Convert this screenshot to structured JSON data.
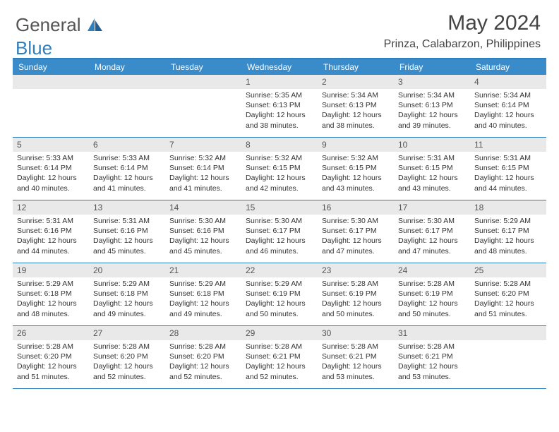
{
  "brand": {
    "part1": "General",
    "part2": "Blue"
  },
  "title": "May 2024",
  "location": "Prinza, Calabarzon, Philippines",
  "colors": {
    "header_bg": "#3a8bc9",
    "border": "#2f7fbf",
    "daynum_bg": "#e9e9e9",
    "text": "#333333"
  },
  "dow": [
    "Sunday",
    "Monday",
    "Tuesday",
    "Wednesday",
    "Thursday",
    "Friday",
    "Saturday"
  ],
  "weeks": [
    [
      null,
      null,
      null,
      {
        "n": "1",
        "sr": "5:35 AM",
        "ss": "6:13 PM",
        "dlA": "Daylight: 12 hours",
        "dlB": "and 38 minutes."
      },
      {
        "n": "2",
        "sr": "5:34 AM",
        "ss": "6:13 PM",
        "dlA": "Daylight: 12 hours",
        "dlB": "and 38 minutes."
      },
      {
        "n": "3",
        "sr": "5:34 AM",
        "ss": "6:13 PM",
        "dlA": "Daylight: 12 hours",
        "dlB": "and 39 minutes."
      },
      {
        "n": "4",
        "sr": "5:34 AM",
        "ss": "6:14 PM",
        "dlA": "Daylight: 12 hours",
        "dlB": "and 40 minutes."
      }
    ],
    [
      {
        "n": "5",
        "sr": "5:33 AM",
        "ss": "6:14 PM",
        "dlA": "Daylight: 12 hours",
        "dlB": "and 40 minutes."
      },
      {
        "n": "6",
        "sr": "5:33 AM",
        "ss": "6:14 PM",
        "dlA": "Daylight: 12 hours",
        "dlB": "and 41 minutes."
      },
      {
        "n": "7",
        "sr": "5:32 AM",
        "ss": "6:14 PM",
        "dlA": "Daylight: 12 hours",
        "dlB": "and 41 minutes."
      },
      {
        "n": "8",
        "sr": "5:32 AM",
        "ss": "6:15 PM",
        "dlA": "Daylight: 12 hours",
        "dlB": "and 42 minutes."
      },
      {
        "n": "9",
        "sr": "5:32 AM",
        "ss": "6:15 PM",
        "dlA": "Daylight: 12 hours",
        "dlB": "and 43 minutes."
      },
      {
        "n": "10",
        "sr": "5:31 AM",
        "ss": "6:15 PM",
        "dlA": "Daylight: 12 hours",
        "dlB": "and 43 minutes."
      },
      {
        "n": "11",
        "sr": "5:31 AM",
        "ss": "6:15 PM",
        "dlA": "Daylight: 12 hours",
        "dlB": "and 44 minutes."
      }
    ],
    [
      {
        "n": "12",
        "sr": "5:31 AM",
        "ss": "6:16 PM",
        "dlA": "Daylight: 12 hours",
        "dlB": "and 44 minutes."
      },
      {
        "n": "13",
        "sr": "5:31 AM",
        "ss": "6:16 PM",
        "dlA": "Daylight: 12 hours",
        "dlB": "and 45 minutes."
      },
      {
        "n": "14",
        "sr": "5:30 AM",
        "ss": "6:16 PM",
        "dlA": "Daylight: 12 hours",
        "dlB": "and 45 minutes."
      },
      {
        "n": "15",
        "sr": "5:30 AM",
        "ss": "6:17 PM",
        "dlA": "Daylight: 12 hours",
        "dlB": "and 46 minutes."
      },
      {
        "n": "16",
        "sr": "5:30 AM",
        "ss": "6:17 PM",
        "dlA": "Daylight: 12 hours",
        "dlB": "and 47 minutes."
      },
      {
        "n": "17",
        "sr": "5:30 AM",
        "ss": "6:17 PM",
        "dlA": "Daylight: 12 hours",
        "dlB": "and 47 minutes."
      },
      {
        "n": "18",
        "sr": "5:29 AM",
        "ss": "6:17 PM",
        "dlA": "Daylight: 12 hours",
        "dlB": "and 48 minutes."
      }
    ],
    [
      {
        "n": "19",
        "sr": "5:29 AM",
        "ss": "6:18 PM",
        "dlA": "Daylight: 12 hours",
        "dlB": "and 48 minutes."
      },
      {
        "n": "20",
        "sr": "5:29 AM",
        "ss": "6:18 PM",
        "dlA": "Daylight: 12 hours",
        "dlB": "and 49 minutes."
      },
      {
        "n": "21",
        "sr": "5:29 AM",
        "ss": "6:18 PM",
        "dlA": "Daylight: 12 hours",
        "dlB": "and 49 minutes."
      },
      {
        "n": "22",
        "sr": "5:29 AM",
        "ss": "6:19 PM",
        "dlA": "Daylight: 12 hours",
        "dlB": "and 50 minutes."
      },
      {
        "n": "23",
        "sr": "5:28 AM",
        "ss": "6:19 PM",
        "dlA": "Daylight: 12 hours",
        "dlB": "and 50 minutes."
      },
      {
        "n": "24",
        "sr": "5:28 AM",
        "ss": "6:19 PM",
        "dlA": "Daylight: 12 hours",
        "dlB": "and 50 minutes."
      },
      {
        "n": "25",
        "sr": "5:28 AM",
        "ss": "6:20 PM",
        "dlA": "Daylight: 12 hours",
        "dlB": "and 51 minutes."
      }
    ],
    [
      {
        "n": "26",
        "sr": "5:28 AM",
        "ss": "6:20 PM",
        "dlA": "Daylight: 12 hours",
        "dlB": "and 51 minutes."
      },
      {
        "n": "27",
        "sr": "5:28 AM",
        "ss": "6:20 PM",
        "dlA": "Daylight: 12 hours",
        "dlB": "and 52 minutes."
      },
      {
        "n": "28",
        "sr": "5:28 AM",
        "ss": "6:20 PM",
        "dlA": "Daylight: 12 hours",
        "dlB": "and 52 minutes."
      },
      {
        "n": "29",
        "sr": "5:28 AM",
        "ss": "6:21 PM",
        "dlA": "Daylight: 12 hours",
        "dlB": "and 52 minutes."
      },
      {
        "n": "30",
        "sr": "5:28 AM",
        "ss": "6:21 PM",
        "dlA": "Daylight: 12 hours",
        "dlB": "and 53 minutes."
      },
      {
        "n": "31",
        "sr": "5:28 AM",
        "ss": "6:21 PM",
        "dlA": "Daylight: 12 hours",
        "dlB": "and 53 minutes."
      },
      null
    ]
  ],
  "labels": {
    "sunrise": "Sunrise: ",
    "sunset": "Sunset: "
  }
}
